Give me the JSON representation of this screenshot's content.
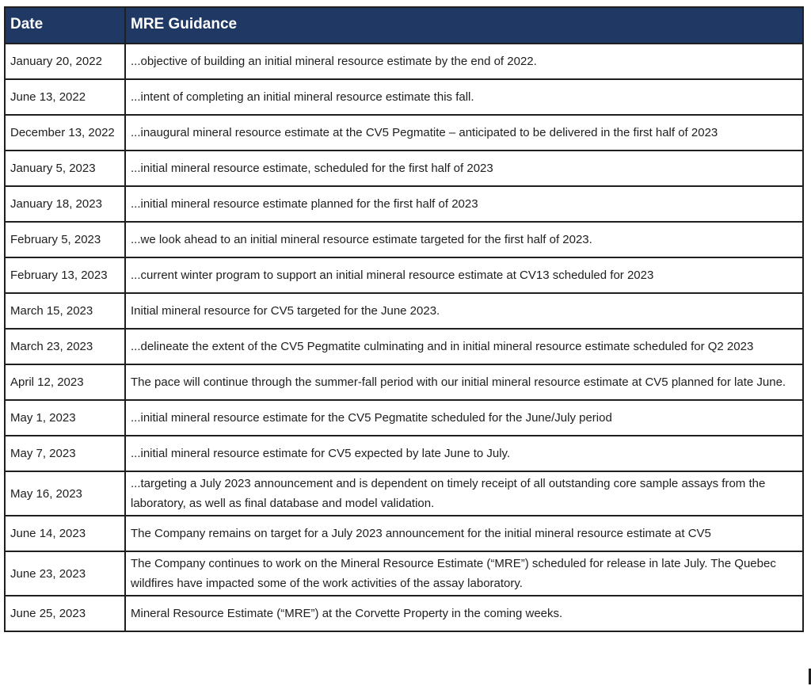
{
  "table": {
    "colors": {
      "header_bg": "#1f3864",
      "header_text": "#ffffff",
      "border": "#1f1f1f"
    },
    "columns": [
      {
        "label": "Date"
      },
      {
        "label": "MRE Guidance"
      }
    ],
    "rows": [
      {
        "date": "January 20, 2022",
        "guidance": "...objective of building an initial mineral resource estimate by the end of 2022."
      },
      {
        "date": "June 13, 2022",
        "guidance": "...intent of completing an initial mineral resource estimate this fall."
      },
      {
        "date": "December 13, 2022",
        "guidance": "...inaugural mineral resource estimate at the CV5 Pegmatite – anticipated to be delivered in the first half of 2023"
      },
      {
        "date": "January 5, 2023",
        "guidance": "...initial mineral resource estimate, scheduled for the first half of 2023"
      },
      {
        "date": "January 18, 2023",
        "guidance": "...initial mineral resource estimate planned for the first half of 2023"
      },
      {
        "date": "February 5, 2023",
        "guidance": "...we look ahead to an initial mineral resource estimate targeted for the first half of 2023."
      },
      {
        "date": "February 13, 2023",
        "guidance": "...current winter program to support an initial mineral resource estimate at CV13 scheduled for 2023"
      },
      {
        "date": "March 15, 2023",
        "guidance": "Initial mineral resource for CV5 targeted for the June 2023."
      },
      {
        "date": "March 23, 2023",
        "guidance": "...delineate the extent of the CV5 Pegmatite culminating and in initial mineral resource estimate scheduled for Q2 2023"
      },
      {
        "date": "April 12, 2023",
        "guidance": "The pace will continue through the summer-fall period with our initial mineral resource estimate at CV5 planned for late June."
      },
      {
        "date": "May 1, 2023",
        "guidance": "...initial mineral resource estimate for the CV5 Pegmatite scheduled for the June/July period"
      },
      {
        "date": "May 7, 2023",
        "guidance": "...initial mineral resource estimate for CV5 expected by late June to July."
      },
      {
        "date": "May 16, 2023",
        "guidance": "...targeting a July 2023 announcement and is dependent on timely receipt of all outstanding core sample assays from the laboratory, as well as final database and model validation."
      },
      {
        "date": "June 14, 2023",
        "guidance": "The Company remains on target for a July 2023 announcement for the initial mineral resource estimate at CV5"
      },
      {
        "date": "June 23, 2023",
        "guidance": "The Company continues to work on the Mineral Resource Estimate (“MRE”) scheduled for release in late July. The Quebec wildfires have impacted some of the work activities of the assay laboratory."
      },
      {
        "date": "June 25, 2023",
        "guidance": "Mineral Resource Estimate (“MRE”) at the Corvette Property in the coming weeks."
      }
    ]
  }
}
